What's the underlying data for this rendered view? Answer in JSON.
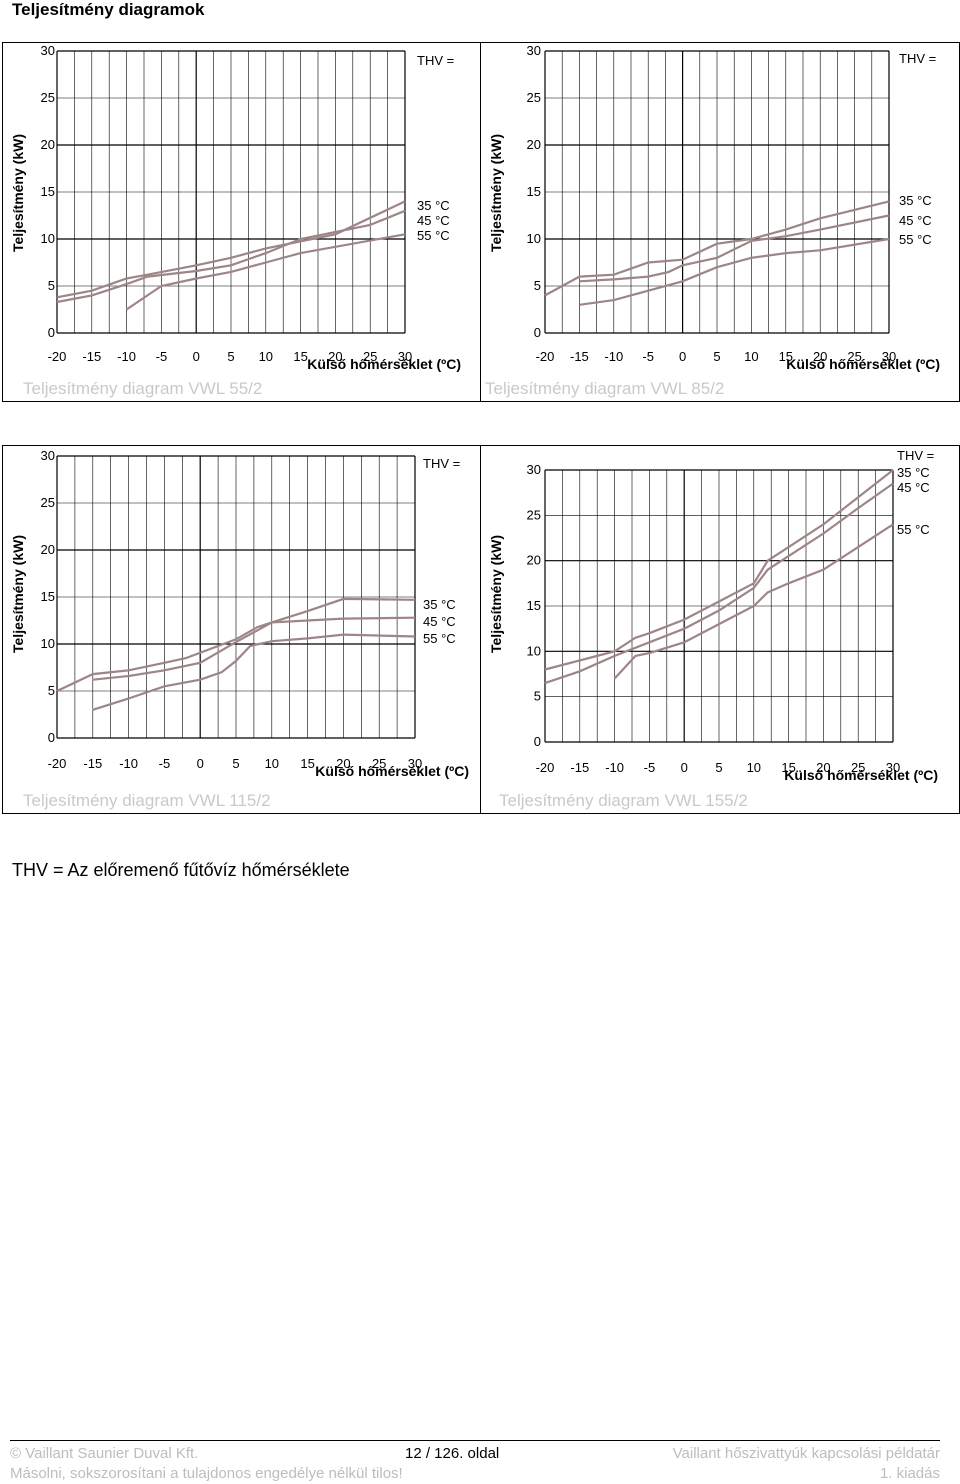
{
  "page": {
    "title": "Teljesítmény diagramok",
    "thv_note": "THV = Az előremenő fűtővíz hőmérséklete"
  },
  "footer": {
    "copyright": "© Vaillant Saunier Duval Kft.",
    "page_number": "12 / 126. oldal",
    "doc_title": "Vaillant hőszivattyúk kapcsolási példatár",
    "notice": "Másolni, sokszorosítani a tulajdonos engedélye nélkül tilos!",
    "edition": "1. kiadás"
  },
  "colors": {
    "curve": "#9e8587",
    "grid": "#000000",
    "caption": "#c9c9c9"
  },
  "chart_data": [
    {
      "type": "line",
      "caption": "Teljesítmény diagram   VWL 55/2",
      "ylabel": "Teljesítmény (kW)",
      "xlabel": "Külső hőmérséklet (ºC)",
      "thv_label": "THV =",
      "xlim": [
        -20,
        30
      ],
      "ylim": [
        0,
        30
      ],
      "x_ticks": [
        "-20",
        "-15",
        "-10",
        "-5",
        "0",
        "5",
        "10",
        "15",
        "20",
        "25",
        "30"
      ],
      "y_ticks": [
        "0",
        "5",
        "10",
        "15",
        "20",
        "25",
        "30"
      ],
      "series": [
        {
          "name": "35 °C",
          "x": [
            -20,
            -15,
            -10,
            -7,
            0,
            5,
            10,
            20,
            30
          ],
          "y": [
            3.8,
            4.5,
            5.8,
            6.2,
            7.2,
            8,
            9,
            10.5,
            14
          ]
        },
        {
          "name": "45 °C",
          "x": [
            -20,
            -15,
            -10,
            -7,
            0,
            5,
            10,
            15,
            25,
            30
          ],
          "y": [
            3.3,
            4,
            5.2,
            6,
            6.6,
            7.2,
            8.5,
            10,
            11.5,
            13
          ]
        },
        {
          "name": "55 °C",
          "x": [
            -10,
            -5,
            0,
            5,
            10,
            15,
            30
          ],
          "y": [
            2.5,
            5,
            5.8,
            6.5,
            7.5,
            8.5,
            10.5
          ]
        }
      ]
    },
    {
      "type": "line",
      "caption": "Teljesítmény diagram   VWL 85/2",
      "ylabel": "Teljesítmény (kW)",
      "xlabel": "Külső hőmérséklet (ºC)",
      "thv_label": "THV =",
      "xlim": [
        -20,
        30
      ],
      "ylim": [
        0,
        30
      ],
      "x_ticks": [
        "-20",
        "-15",
        "-10",
        "-5",
        "0",
        "5",
        "10",
        "15",
        "20",
        "25",
        "30"
      ],
      "y_ticks": [
        "0",
        "5",
        "10",
        "15",
        "20",
        "25",
        "30"
      ],
      "series": [
        {
          "name": "35 °C",
          "x": [
            -20,
            -15,
            -10,
            -5,
            0,
            5,
            10,
            15,
            20,
            30
          ],
          "y": [
            4,
            6,
            6.2,
            7.5,
            7.8,
            9.5,
            10,
            11,
            12.2,
            14
          ]
        },
        {
          "name": "45 °C",
          "x": [
            -15,
            -10,
            -5,
            -2,
            0,
            5,
            10,
            15,
            20,
            30
          ],
          "y": [
            5.5,
            5.7,
            6,
            6.5,
            7.2,
            8,
            9.8,
            10.3,
            11,
            12.5
          ]
        },
        {
          "name": "55 °C",
          "x": [
            -15,
            -10,
            -5,
            0,
            5,
            10,
            15,
            20,
            30
          ],
          "y": [
            3,
            3.5,
            4.5,
            5.5,
            7,
            8,
            8.5,
            8.8,
            10
          ]
        }
      ]
    },
    {
      "type": "line",
      "caption": "Teljesítmény diagram   VWL 115/2",
      "ylabel": "Teljesítmény (kW)",
      "xlabel": "Külső hőmérséklet (ºC)",
      "thv_label": "THV =",
      "xlim": [
        -20,
        30
      ],
      "ylim": [
        0,
        30
      ],
      "x_ticks": [
        "-20",
        "-15",
        "-10",
        "-5",
        "0",
        "5",
        "10",
        "15",
        "20",
        "25",
        "30"
      ],
      "y_ticks": [
        "0",
        "5",
        "10",
        "15",
        "20",
        "25",
        "30"
      ],
      "series": [
        {
          "name": "35 °C",
          "x": [
            -20,
            -15,
            -10,
            -5,
            -2,
            5,
            8,
            10,
            15,
            20,
            30
          ],
          "y": [
            5,
            6.8,
            7.2,
            8,
            8.5,
            10.5,
            11.8,
            12.3,
            13.5,
            14.8,
            14.7
          ]
        },
        {
          "name": "45 °C",
          "x": [
            -15,
            -10,
            -5,
            0,
            5,
            10,
            15,
            20,
            30
          ],
          "y": [
            6.2,
            6.6,
            7.2,
            8,
            10.2,
            12.3,
            12.5,
            12.7,
            12.8
          ]
        },
        {
          "name": "55 °C",
          "x": [
            -15,
            -10,
            -5,
            0,
            3,
            5,
            7,
            10,
            15,
            20,
            30
          ],
          "y": [
            3,
            4.2,
            5.5,
            6.2,
            7,
            8.2,
            9.8,
            10.3,
            10.6,
            11,
            10.8
          ]
        }
      ]
    },
    {
      "type": "line",
      "caption": "Teljesítmény diagram   VWL 155/2",
      "ylabel": "Teljesítmény (kW)",
      "xlabel": "Külső hőmérséklet (ºC)",
      "thv_label": "THV =",
      "xlim": [
        -20,
        30
      ],
      "ylim": [
        0,
        30
      ],
      "x_ticks": [
        "-20",
        "-15",
        "-10",
        "-5",
        "0",
        "5",
        "10",
        "15",
        "20",
        "25",
        "30"
      ],
      "y_ticks": [
        "0",
        "5",
        "10",
        "15",
        "20",
        "25",
        "30"
      ],
      "series": [
        {
          "name": "35 °C",
          "x": [
            -20,
            -10,
            -7,
            -5,
            0,
            5,
            10,
            12,
            15,
            20,
            25,
            30
          ],
          "y": [
            8,
            10,
            11.5,
            12,
            13.5,
            15.5,
            17.5,
            20,
            21.5,
            24,
            27,
            30
          ]
        },
        {
          "name": "45 °C",
          "x": [
            -20,
            -15,
            -10,
            -5,
            0,
            5,
            10,
            12,
            15,
            20,
            25,
            30
          ],
          "y": [
            6.5,
            7.8,
            9.5,
            11,
            12.5,
            14.5,
            17,
            19,
            20.5,
            23,
            25.8,
            28.5
          ]
        },
        {
          "name": "55 °C",
          "x": [
            -10,
            -7,
            -5,
            0,
            5,
            10,
            12,
            15,
            20,
            25,
            30
          ],
          "y": [
            7,
            9.5,
            9.8,
            11,
            13,
            15,
            16.5,
            17.5,
            19,
            21.5,
            24
          ]
        }
      ]
    }
  ]
}
